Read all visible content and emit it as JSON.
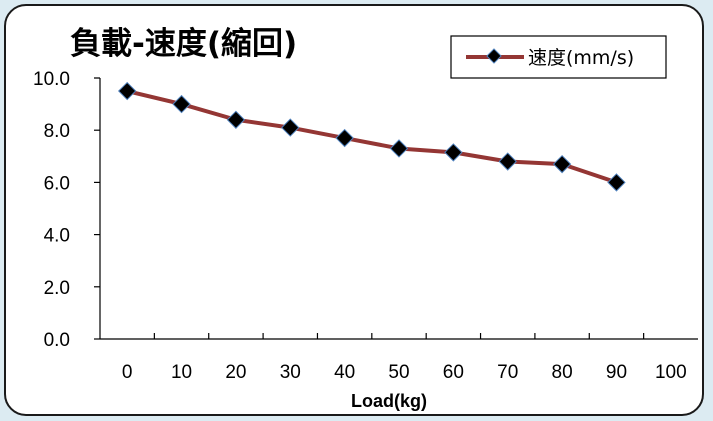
{
  "chart_data": {
    "type": "line",
    "title": "負載-速度(縮回)",
    "xlabel": "Load(kg)",
    "ylabel": "",
    "x_ticks": [
      0,
      10,
      20,
      30,
      40,
      50,
      60,
      70,
      80,
      90,
      100
    ],
    "y_ticks": [
      "0.0",
      "2.0",
      "4.0",
      "6.0",
      "8.0",
      "10.0"
    ],
    "xlim": [
      -5,
      105
    ],
    "ylim": [
      0,
      10
    ],
    "legend_position": "top-right",
    "grid": false,
    "series": [
      {
        "name": "速度(mm/s)",
        "color": "#943634",
        "marker_color": "#000000",
        "marker_edge": "#4f81bd",
        "x": [
          0,
          10,
          20,
          30,
          40,
          50,
          60,
          70,
          80,
          90
        ],
        "y": [
          9.5,
          9.0,
          8.4,
          8.1,
          7.7,
          7.3,
          7.15,
          6.8,
          6.7,
          6.0
        ]
      }
    ]
  }
}
